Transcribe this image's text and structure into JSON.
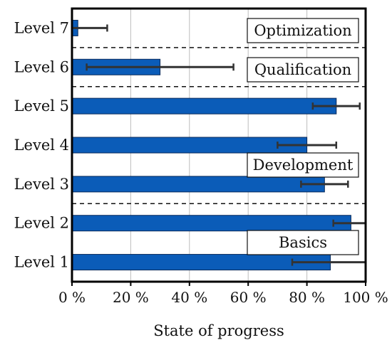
{
  "chart_data": {
    "type": "bar",
    "orientation": "horizontal",
    "categories": [
      "Level 1",
      "Level 2",
      "Level 3",
      "Level 4",
      "Level 5",
      "Level 6",
      "Level 7"
    ],
    "values": [
      88,
      95,
      86,
      80,
      90,
      30,
      2
    ],
    "error_ranges": [
      [
        75,
        100
      ],
      [
        89,
        100
      ],
      [
        78,
        94
      ],
      [
        70,
        90
      ],
      [
        82,
        98
      ],
      [
        5,
        55
      ],
      [
        0,
        12
      ]
    ],
    "xlabel": "State of progress",
    "xlim": [
      0,
      100
    ],
    "xticks": [
      0,
      20,
      40,
      60,
      80,
      100
    ],
    "xtick_labels": [
      "0 %",
      "20 %",
      "40 %",
      "60 %",
      "80 %",
      "100 %"
    ],
    "grid": "vertical",
    "bar_color": "#0b5cb8",
    "phases": [
      {
        "label": "Optimization",
        "levels": [
          "Level 7"
        ]
      },
      {
        "label": "Qualification",
        "levels": [
          "Level 6"
        ]
      },
      {
        "label": "Development",
        "levels": [
          "Level 3",
          "Level 4",
          "Level 5"
        ]
      },
      {
        "label": "Basics",
        "levels": [
          "Level 1",
          "Level 2"
        ]
      }
    ]
  }
}
